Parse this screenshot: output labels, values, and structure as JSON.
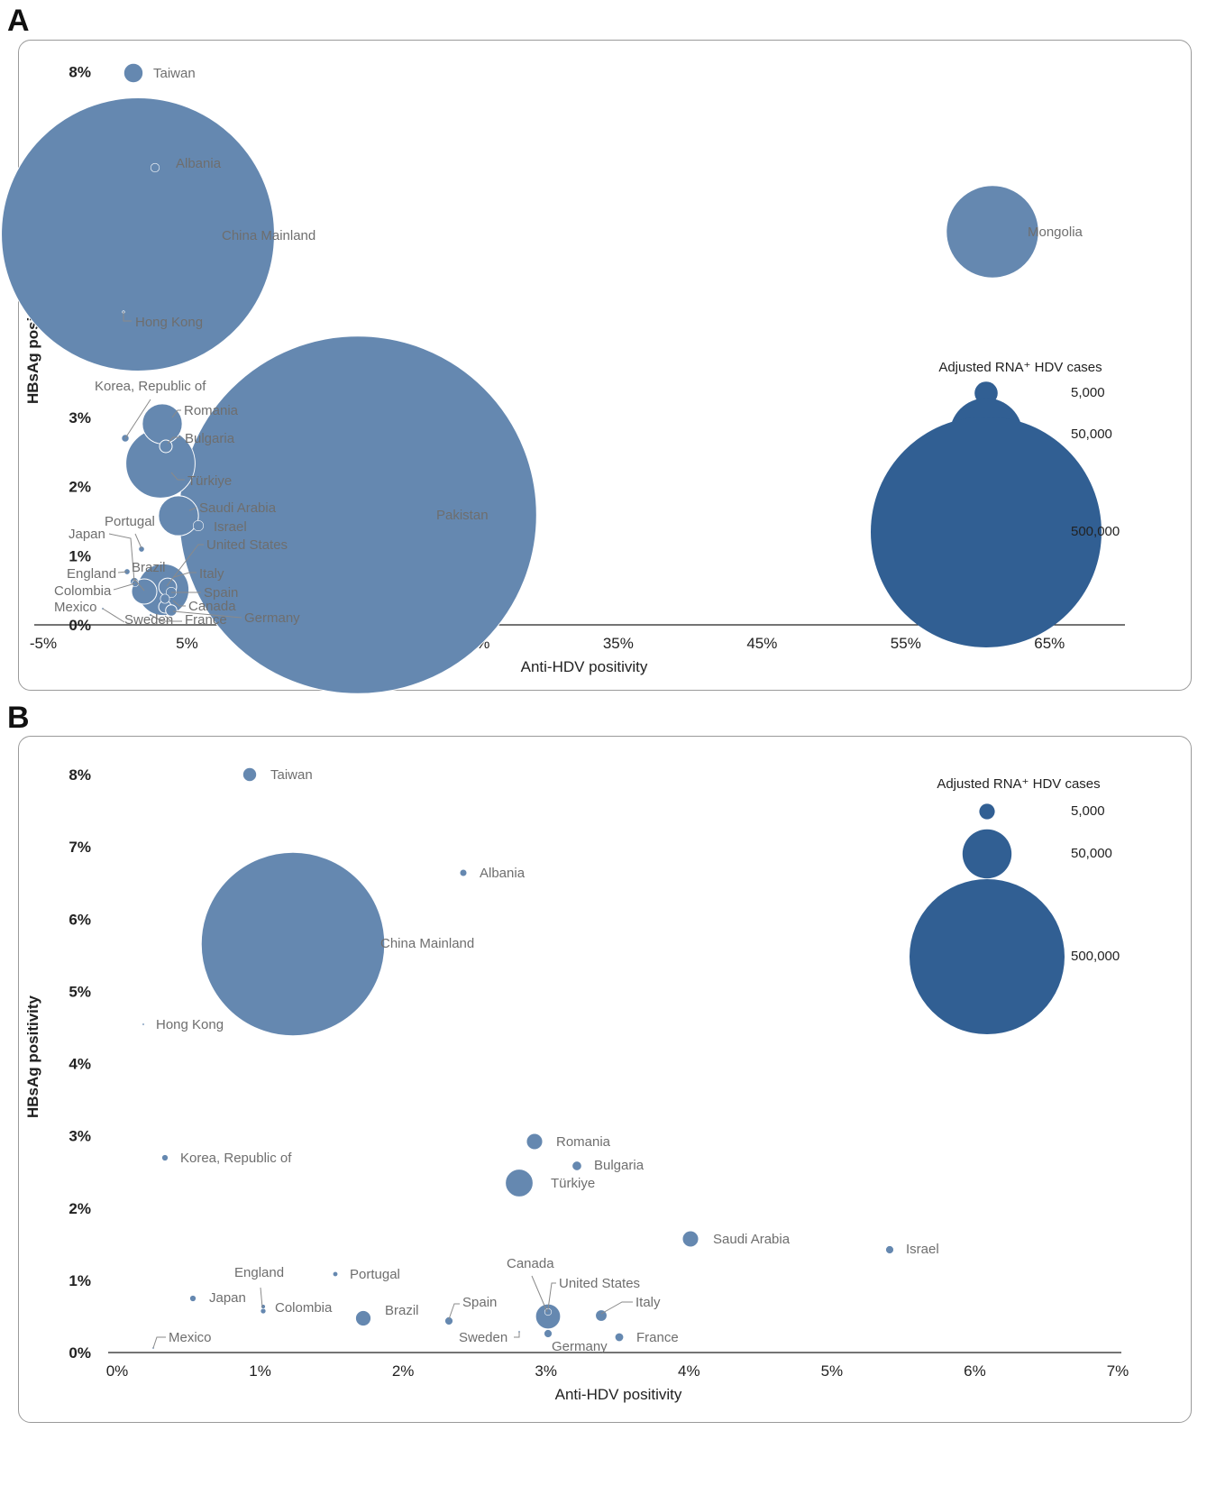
{
  "colors": {
    "bubble": "#6588b0",
    "legend": "#315f93",
    "leader": "#8a8a8a",
    "axis": "#222222"
  },
  "chart_data": [
    {
      "panel": "A",
      "type": "scatter",
      "xlabel": "Anti-HDV positivity",
      "ylabel": "HBsAg positivity",
      "xlim": [
        -5,
        70
      ],
      "ylim": [
        0,
        8.2
      ],
      "xticks": [
        -5,
        5,
        15,
        25,
        35,
        45,
        55,
        65
      ],
      "yticks": [
        0,
        1,
        2,
        3,
        4,
        5,
        6,
        7,
        8
      ],
      "legend": {
        "title": "Adjusted RNA⁺ HDV cases",
        "sizes": [
          5000,
          50000,
          500000
        ],
        "labels": [
          "5,000",
          "50,000",
          "500,000"
        ],
        "placement": "right"
      },
      "points": [
        {
          "name": "Taiwan",
          "x": 1.7,
          "y": 7.8,
          "cases": 3500
        },
        {
          "name": "Albania",
          "x": 2.9,
          "y": 6.45,
          "cases": 700
        },
        {
          "name": "China Mainland",
          "x": 1.2,
          "y": 5.5,
          "cases": 700000
        },
        {
          "name": "Mongolia",
          "x": 61.5,
          "y": 5.55,
          "cases": 80000
        },
        {
          "name": "Hong Kong",
          "x": 0.2,
          "y": 4.45,
          "cases": 50
        },
        {
          "name": "Korea, Republic of",
          "x": 0.3,
          "y": 2.6,
          "cases": 500
        },
        {
          "name": "Romania",
          "x": 3.4,
          "y": 2.85,
          "cases": 15000
        },
        {
          "name": "Bulgaria",
          "x": 3.7,
          "y": 2.5,
          "cases": 1500
        },
        {
          "name": "Türkiye",
          "x": 3.2,
          "y": 2.25,
          "cases": 45000
        },
        {
          "name": "Pakistan",
          "x": 16.7,
          "y": 1.55,
          "cases": 1200000
        },
        {
          "name": "Saudi Arabia",
          "x": 4.5,
          "y": 1.55,
          "cases": 15000
        },
        {
          "name": "Israel",
          "x": 5.8,
          "y": 1.4,
          "cases": 1000
        },
        {
          "name": "Portugal",
          "x": 1.5,
          "y": 1.05,
          "cases": 300
        },
        {
          "name": "United States",
          "x": 3.9,
          "y": 0.55,
          "cases": 25000
        },
        {
          "name": "Japan",
          "x": 0.5,
          "y": 0.75,
          "cases": 600
        },
        {
          "name": "Brazil",
          "x": 1.7,
          "y": 0.45,
          "cases": 6000
        },
        {
          "name": "England",
          "x": 1.0,
          "y": 0.6,
          "cases": 300
        },
        {
          "name": "Italy",
          "x": 3.4,
          "y": 0.5,
          "cases": 3000
        },
        {
          "name": "Colombia",
          "x": 1.0,
          "y": 0.55,
          "cases": 400
        },
        {
          "name": "Spain",
          "x": 2.3,
          "y": 0.45,
          "cases": 1000
        },
        {
          "name": "Canada",
          "x": 3.0,
          "y": 0.5,
          "cases": 800
        },
        {
          "name": "Mexico",
          "x": 0.25,
          "y": 0.1,
          "cases": 30
        },
        {
          "name": "Sweden",
          "x": 2.8,
          "y": 0.28,
          "cases": 50
        },
        {
          "name": "France",
          "x": 3.5,
          "y": 0.22,
          "cases": 1500
        },
        {
          "name": "Germany",
          "x": 3.0,
          "y": 0.25,
          "cases": 1200
        }
      ]
    },
    {
      "panel": "B",
      "type": "scatter",
      "xlabel": "Anti-HDV positivity",
      "ylabel": "HBsAg positivity",
      "xlim": [
        0,
        7
      ],
      "ylim": [
        0,
        8.2
      ],
      "xticks": [
        0,
        1,
        2,
        3,
        4,
        5,
        6,
        7
      ],
      "yticks": [
        0,
        1,
        2,
        3,
        4,
        5,
        6,
        7,
        8
      ],
      "legend": {
        "title": "Adjusted RNA⁺ HDV cases",
        "sizes": [
          5000,
          50000,
          500000
        ],
        "labels": [
          "5,000",
          "50,000",
          "500,000"
        ],
        "placement": "top-right"
      },
      "points": [
        {
          "name": "Taiwan",
          "x": 0.93,
          "y": 7.78,
          "cases": 4000
        },
        {
          "name": "Albania",
          "x": 2.43,
          "y": 6.45,
          "cases": 1000
        },
        {
          "name": "China Mainland",
          "x": 1.23,
          "y": 5.5,
          "cases": 700000
        },
        {
          "name": "Hong Kong",
          "x": 0.19,
          "y": 4.42,
          "cases": 50
        },
        {
          "name": "Korea, Republic of",
          "x": 0.34,
          "y": 2.62,
          "cases": 800
        },
        {
          "name": "Romania",
          "x": 2.92,
          "y": 2.85,
          "cases": 5500
        },
        {
          "name": "Bulgaria",
          "x": 3.23,
          "y": 2.52,
          "cases": 1800
        },
        {
          "name": "Türkiye",
          "x": 2.82,
          "y": 2.28,
          "cases": 16000
        },
        {
          "name": "Saudi Arabia",
          "x": 4.04,
          "y": 1.53,
          "cases": 5500
        },
        {
          "name": "Israel",
          "x": 5.42,
          "y": 1.4,
          "cases": 1300
        },
        {
          "name": "Portugal",
          "x": 1.54,
          "y": 1.05,
          "cases": 500
        },
        {
          "name": "England",
          "x": 1.03,
          "y": 0.62,
          "cases": 400
        },
        {
          "name": "Japan",
          "x": 0.54,
          "y": 0.74,
          "cases": 800
        },
        {
          "name": "Colombia",
          "x": 1.03,
          "y": 0.57,
          "cases": 600
        },
        {
          "name": "Brazil",
          "x": 1.73,
          "y": 0.47,
          "cases": 5000
        },
        {
          "name": "Spain",
          "x": 2.34,
          "y": 0.44,
          "cases": 1300
        },
        {
          "name": "Canada",
          "x": 3.03,
          "y": 0.55,
          "cases": 1000
        },
        {
          "name": "United States",
          "x": 3.03,
          "y": 0.48,
          "cases": 13000
        },
        {
          "name": "Italy",
          "x": 3.39,
          "y": 0.5,
          "cases": 2800
        },
        {
          "name": "Sweden",
          "x": 2.83,
          "y": 0.28,
          "cases": 100
        },
        {
          "name": "Germany",
          "x": 3.03,
          "y": 0.25,
          "cases": 1300
        },
        {
          "name": "France",
          "x": 3.52,
          "y": 0.22,
          "cases": 1500
        },
        {
          "name": "Mexico",
          "x": 0.28,
          "y": 0.1,
          "cases": 30
        }
      ]
    }
  ]
}
